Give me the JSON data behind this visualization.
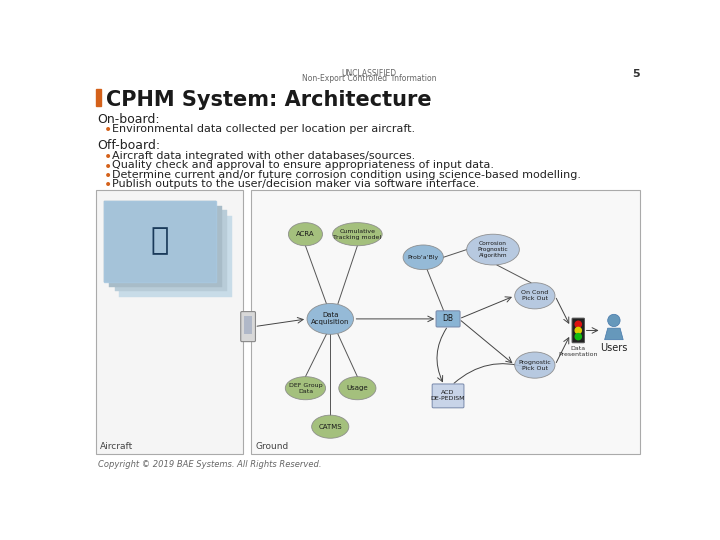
{
  "background_color": "#ffffff",
  "header_line1": "UNCLASSIFIED",
  "header_line2": "Non-Export Controlled  Information",
  "page_number": "5",
  "title": "CPHM System: Architecture",
  "title_bar_color": "#d4611a",
  "title_color": "#1a1a1a",
  "title_fontsize": 15,
  "section1_heading": "On-board:",
  "section1_bullet": "Environmental data collected per location per aircraft.",
  "section2_heading": "Off-board:",
  "section2_bullets": [
    "Aircraft data integrated with other databases/sources.",
    "Quality check and approval to ensure appropriateness of input data.",
    "Determine current and/or future corrosion condition using science-based modelling.",
    "Publish outputs to the user/decision maker via software interface."
  ],
  "bullet_color": "#d4611a",
  "heading_fontsize": 9,
  "bullet_fontsize": 8,
  "header_fontsize": 5.5,
  "footer_text": "Copyright © 2019 BAE Systems. All Rights Reserved.",
  "footer_fontsize": 6,
  "aircraft_box_color": "#f5f5f5",
  "aircraft_box_border": "#aaaaaa",
  "ground_box_color": "#f8f8f8",
  "ground_box_border": "#aaaaaa",
  "diagram_node_green": "#9bba70",
  "diagram_node_blue_light": "#8ab4d4",
  "diagram_node_blue_gray": "#b0c4de",
  "diagram_text_color": "#333333"
}
